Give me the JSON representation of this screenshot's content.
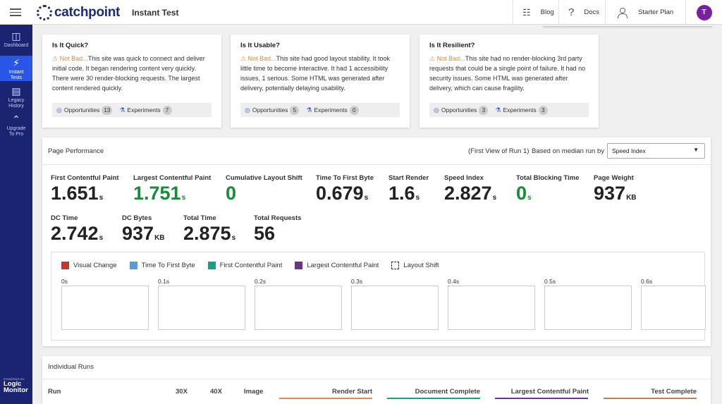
{
  "header": {
    "brand": "catchpoint",
    "title": "Instant Test",
    "blog": "Blog",
    "docs": "Docs",
    "plan": "Starter Plan",
    "avatar_initial": "T"
  },
  "sidebar": {
    "items": [
      {
        "label": "Dashboard",
        "icon": "dashboard-icon"
      },
      {
        "label": "Instant Tests",
        "icon": "lightning-icon",
        "active": true
      },
      {
        "label": "Legacy History",
        "icon": "history-list-icon"
      },
      {
        "label": "Upgrade To Pro",
        "icon": "chevrons-up-icon"
      }
    ],
    "powered_by": "POWERED BY",
    "powered_brand_1": "Logic",
    "powered_brand_2": "Monitor"
  },
  "cards": [
    {
      "title": "Is It Quick?",
      "status": "Not Bad...",
      "text": "This site was quick to connect and deliver initial code. It began rendering content very quickly. There were 30 render-blocking requests. The largest content rendered quickly.",
      "opportunities_label": "Opportunities",
      "opportunities": "13",
      "experiments_label": "Experiments",
      "experiments": "7"
    },
    {
      "title": "Is It Usable?",
      "status": "Not Bad...",
      "text": "This site had good layout stability. It took little time to become interactive. It had 1 accessibility issues, 1 serious. Some HTML was generated after delivery, potentially delaying usability.",
      "opportunities_label": "Opportunities",
      "opportunities": "5",
      "experiments_label": "Experiments",
      "experiments": "0"
    },
    {
      "title": "Is It Resilient?",
      "status": "Not Bad...",
      "text": "This site had no render-blocking 3rd party requests that could be a single point of failure. It had no security issues. Some HTML was generated after delivery, which can cause fragility.",
      "opportunities_label": "Opportunities",
      "opportunities": "3",
      "experiments_label": "Experiments",
      "experiments": "3"
    }
  ],
  "performance": {
    "title": "Page Performance",
    "run_info": "(First View of Run 1)",
    "based_on": "Based on median run by",
    "selected_metric": "Speed Index",
    "metrics": [
      {
        "label": "First Contentful Paint",
        "value": "1.651",
        "unit": "s",
        "color": "#222222"
      },
      {
        "label": "Largest Contentful Paint",
        "value": "1.751",
        "unit": "s",
        "color": "#1a8a3a"
      },
      {
        "label": "Cumulative Layout Shift",
        "value": "0",
        "unit": "",
        "color": "#1a8a3a"
      },
      {
        "label": "Time To First Byte",
        "value": "0.679",
        "unit": "s",
        "color": "#222222"
      },
      {
        "label": "Start Render",
        "value": "1.6",
        "unit": "s",
        "color": "#222222"
      },
      {
        "label": "Speed Index",
        "value": "2.827",
        "unit": "s",
        "color": "#222222"
      },
      {
        "label": "Total Blocking Time",
        "value": "0",
        "unit": "s",
        "color": "#1a8a3a"
      },
      {
        "label": "Page Weight",
        "value": "937",
        "unit": "KB",
        "color": "#222222"
      },
      {
        "label": "DC Time",
        "value": "2.742",
        "unit": "s",
        "color": "#222222"
      },
      {
        "label": "DC Bytes",
        "value": "937",
        "unit": "KB",
        "color": "#222222"
      },
      {
        "label": "Total Time",
        "value": "2.875",
        "unit": "s",
        "color": "#222222"
      },
      {
        "label": "Total Requests",
        "value": "56",
        "unit": "",
        "color": "#222222"
      }
    ],
    "legend": [
      {
        "label": "Visual Change",
        "color": "#c0392b"
      },
      {
        "label": "Time To First Byte",
        "color": "#5b9bd5"
      },
      {
        "label": "First Contentful Paint",
        "color": "#16a085"
      },
      {
        "label": "Largest Contentful Paint",
        "color": "#6c3483"
      },
      {
        "label": "Layout Shift",
        "color": "dashed"
      }
    ],
    "frames": [
      "0s",
      "0.1s",
      "0.2s",
      "0.3s",
      "0.4s",
      "0.5s",
      "0.6s"
    ]
  },
  "runs": {
    "title": "Individual Runs",
    "columns": [
      {
        "label": "Run"
      },
      {
        "label": "30X"
      },
      {
        "label": "40X"
      },
      {
        "label": "Image"
      },
      {
        "label": "Render Start",
        "color": "#e8894a"
      },
      {
        "label": "Document Complete",
        "color": "#16a085"
      },
      {
        "label": "Largest Contentful Paint",
        "color": "#6c3483"
      },
      {
        "label": "Test Complete",
        "color": "#b5835a"
      }
    ]
  }
}
